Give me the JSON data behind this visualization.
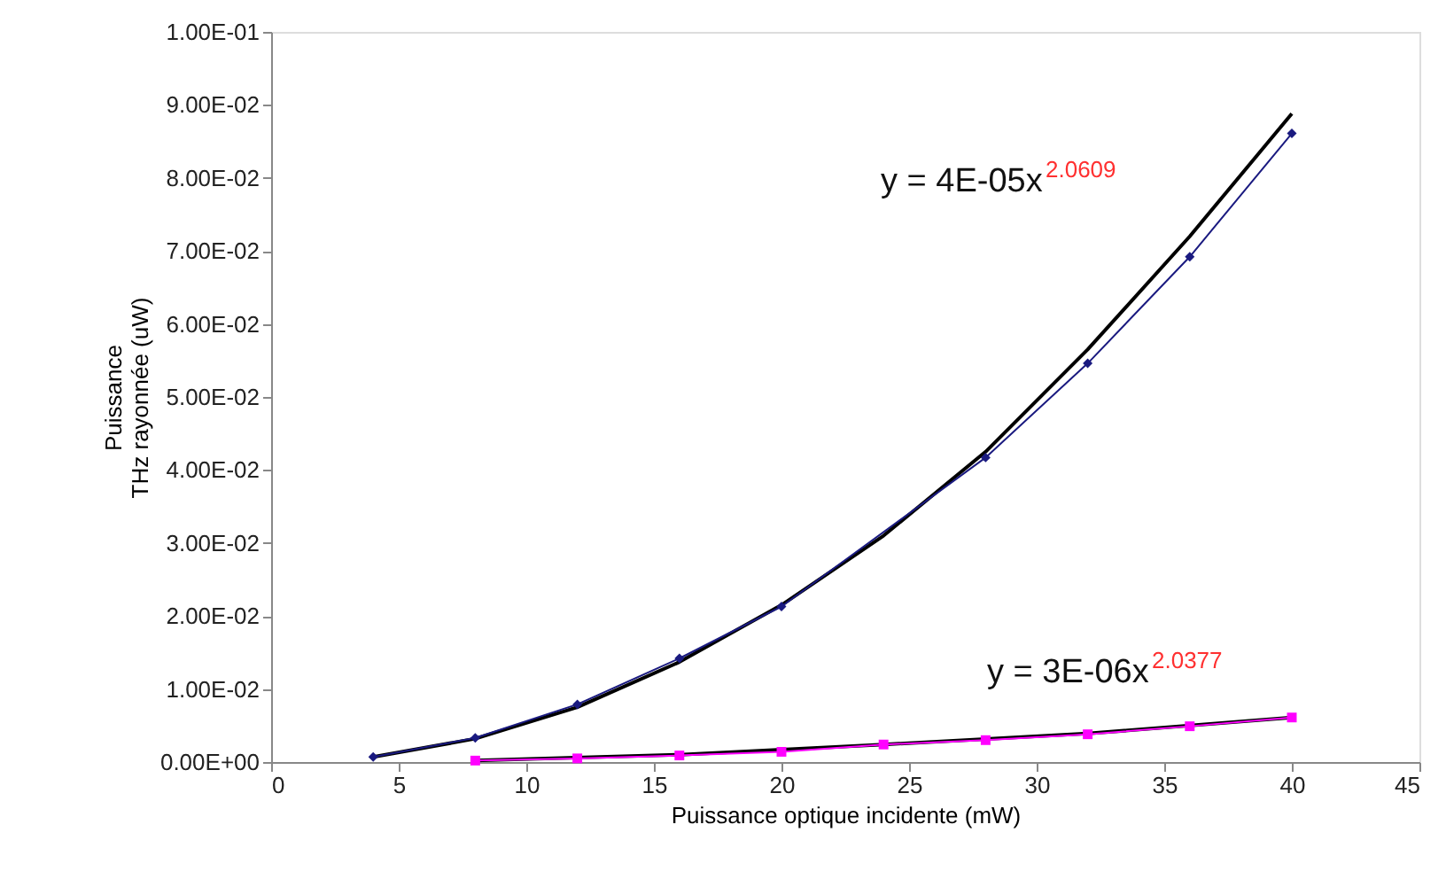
{
  "chart_data": {
    "type": "line",
    "xlabel": "Puissance optique incidente (mW)",
    "ylabel": [
      "Puissance",
      "THz rayonnée (uW)"
    ],
    "xlim": [
      0,
      45
    ],
    "xticks": [
      0,
      5,
      10,
      15,
      20,
      25,
      30,
      35,
      40,
      45
    ],
    "ylim": [
      0,
      0.1
    ],
    "yticks": [
      {
        "value": 0,
        "label": "0.00E+00"
      },
      {
        "value": 0.01,
        "label": "1.00E-02"
      },
      {
        "value": 0.02,
        "label": "2.00E-02"
      },
      {
        "value": 0.03,
        "label": "3.00E-02"
      },
      {
        "value": 0.04,
        "label": "4.00E-02"
      },
      {
        "value": 0.05,
        "label": "5.00E-02"
      },
      {
        "value": 0.06,
        "label": "6.00E-02"
      },
      {
        "value": 0.07,
        "label": "7.00E-02"
      },
      {
        "value": 0.08,
        "label": "8.00E-02"
      },
      {
        "value": 0.09,
        "label": "9.00E-02"
      },
      {
        "value": 0.1,
        "label": "1.00E-01"
      }
    ],
    "line_style": "solid",
    "series": [
      {
        "color": "#000000",
        "marker": "none",
        "x": [
          4,
          8,
          12,
          16,
          20,
          24,
          28,
          32,
          36,
          40
        ],
        "values": [
          0.0007,
          0.0032,
          0.0075,
          0.0137,
          0.0215,
          0.031,
          0.0425,
          0.0565,
          0.072,
          0.0888
        ]
      },
      {
        "color": "#000000",
        "marker": "none",
        "x": [
          8,
          16,
          24,
          32,
          40
        ],
        "values": [
          0.0002,
          0.001,
          0.0024,
          0.0039,
          0.0061
        ]
      },
      {
        "color": "#1a1a80",
        "marker": "diamond",
        "x": [
          4,
          8,
          12,
          16,
          20,
          28,
          32,
          36,
          40
        ],
        "values": [
          0.0007,
          0.0033,
          0.0079,
          0.0142,
          0.0213,
          0.0417,
          0.0546,
          0.0692,
          0.0861
        ]
      },
      {
        "color": "#ff00ff",
        "marker": "square",
        "x": [
          8,
          12,
          16,
          20,
          24,
          28,
          32,
          36,
          40
        ],
        "values": [
          0.0002,
          0.0005,
          0.0009,
          0.0014,
          0.0024,
          0.003,
          0.0038,
          0.0049,
          0.0061
        ]
      }
    ],
    "annotations": [
      "y = 4E-05x$^{2.0609}$",
      "y = 3E-06x$^{2.0377}$"
    ]
  }
}
